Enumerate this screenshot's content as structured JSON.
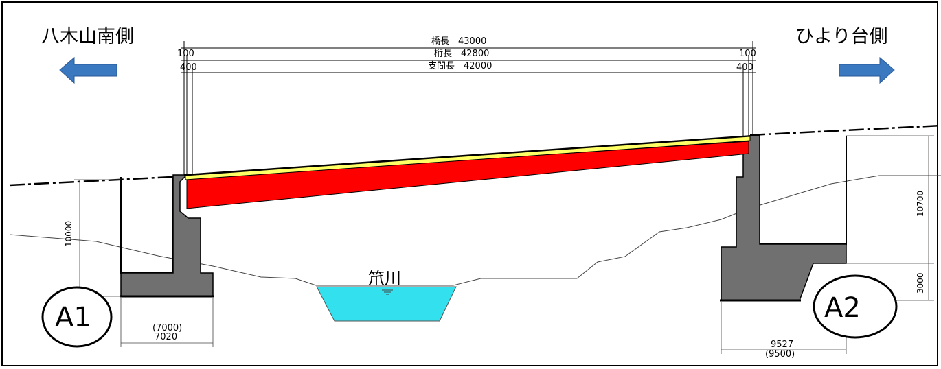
{
  "labels": {
    "left_side": "八木山南側",
    "right_side": "ひより台側",
    "river": "笊川",
    "abutment_left": "A1",
    "abutment_right": "A2"
  },
  "dimensions": {
    "bridge_length": "橋長　43000",
    "girder_length": "桁長　42800",
    "span_length": "支間長　42000",
    "left_offset_top": "100",
    "left_offset_bottom": "400",
    "right_offset_top": "100",
    "right_offset_bottom": "400",
    "a1_height": "10000",
    "a1_width_orig": "(7000)",
    "a1_width": "7020",
    "a2_height": "10700",
    "a2_footing": "3000",
    "a2_width": "9527",
    "a2_width_orig": "(9500)"
  },
  "colors": {
    "girder": "#ff0000",
    "pavement": "#ffff66",
    "concrete": "#707070",
    "water": "#33e0ee",
    "arrow": "#3a78c0"
  }
}
